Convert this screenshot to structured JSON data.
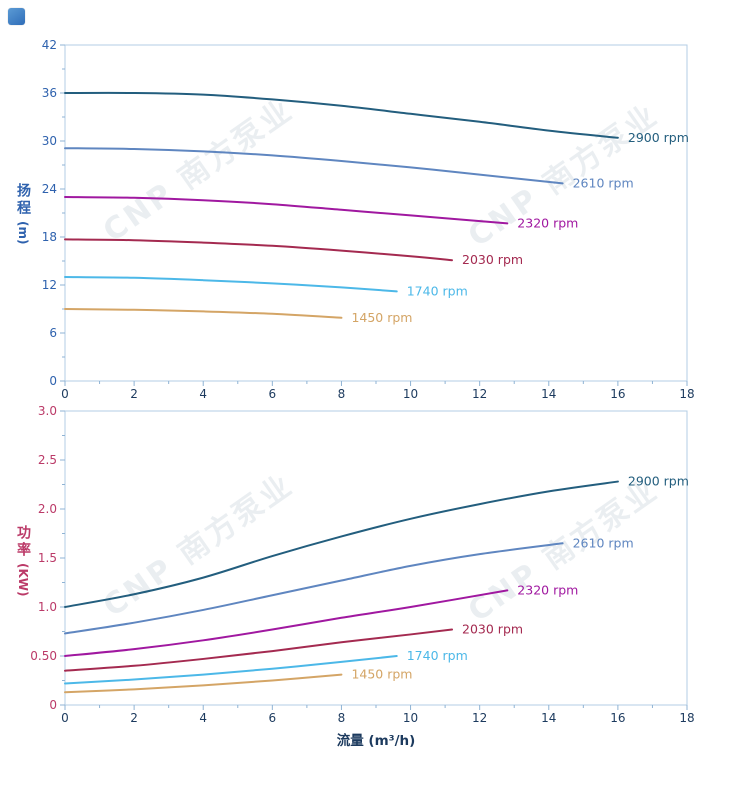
{
  "page": {
    "xaxis_title": "流量 (m³/h)",
    "watermark": "CNP 南方泵业"
  },
  "icons": {
    "corner_logo": "rounded-blue-square"
  },
  "axes": {
    "head": {
      "title": "扬程",
      "unit": "(m)"
    },
    "power": {
      "title": "功率",
      "unit": "(KW)"
    }
  },
  "theme": {
    "plot_border": "#b3cde4",
    "tick_color": "#8fb3d4",
    "xtick_label_color": "#1c3a5e"
  },
  "chart_data": [
    {
      "type": "line",
      "name": "head-vs-flow",
      "title": "",
      "xlabel": "流量 (m³/h)",
      "ylabel": "扬程 (m)",
      "xlim": [
        0,
        18
      ],
      "ylim": [
        0,
        42
      ],
      "xtick_values": [
        0,
        2,
        4,
        6,
        8,
        10,
        12,
        14,
        16,
        18
      ],
      "xtick_labels": [
        "0",
        "2",
        "4",
        "6",
        "8",
        "10",
        "12",
        "14",
        "16",
        "18"
      ],
      "ytick_values": [
        0,
        6,
        12,
        18,
        24,
        30,
        36,
        42
      ],
      "ytick_labels": [
        "0",
        "6",
        "12",
        "18",
        "24",
        "30",
        "36",
        "42"
      ],
      "ytick_label_color": "#2f62ae",
      "grid": false,
      "legend": "end-of-line labels",
      "series": [
        {
          "name": "2900 rpm",
          "color": "#235e7e",
          "x": [
            0,
            2,
            4,
            6,
            8,
            10,
            12,
            14,
            16
          ],
          "y": [
            36.0,
            36.0,
            35.8,
            35.2,
            34.4,
            33.4,
            32.4,
            31.3,
            30.4
          ]
        },
        {
          "name": "2610 rpm",
          "color": "#5f86c0",
          "x": [
            0,
            2,
            4,
            6,
            8,
            10,
            12,
            14.4
          ],
          "y": [
            29.1,
            29.0,
            28.7,
            28.2,
            27.5,
            26.7,
            25.8,
            24.7
          ]
        },
        {
          "name": "2320 rpm",
          "color": "#a018a0",
          "x": [
            0,
            2,
            4,
            6,
            8,
            10,
            12.8
          ],
          "y": [
            23.0,
            22.9,
            22.6,
            22.1,
            21.4,
            20.7,
            19.7
          ]
        },
        {
          "name": "2030 rpm",
          "color": "#a42a50",
          "x": [
            0,
            2,
            4,
            6,
            8,
            10,
            11.2
          ],
          "y": [
            17.7,
            17.6,
            17.3,
            16.9,
            16.3,
            15.6,
            15.1
          ]
        },
        {
          "name": "1740 rpm",
          "color": "#4cb8e8",
          "x": [
            0,
            2,
            4,
            6,
            8,
            9.6
          ],
          "y": [
            13.0,
            12.9,
            12.6,
            12.2,
            11.7,
            11.2
          ]
        },
        {
          "name": "1450 rpm",
          "color": "#d4a566",
          "x": [
            0,
            2,
            4,
            6,
            8
          ],
          "y": [
            9.0,
            8.9,
            8.7,
            8.4,
            7.9
          ]
        }
      ]
    },
    {
      "type": "line",
      "name": "power-vs-flow",
      "title": "",
      "xlabel": "流量 (m³/h)",
      "ylabel": "功率 (KW)",
      "xlim": [
        0,
        18
      ],
      "ylim": [
        0,
        3.0
      ],
      "xtick_values": [
        0,
        2,
        4,
        6,
        8,
        10,
        12,
        14,
        16,
        18
      ],
      "xtick_labels": [
        "0",
        "2",
        "4",
        "6",
        "8",
        "10",
        "12",
        "14",
        "16",
        "18"
      ],
      "ytick_values": [
        0,
        0.5,
        1.0,
        1.5,
        2.0,
        2.5,
        3.0
      ],
      "ytick_labels": [
        "0",
        "0.50",
        "1.0",
        "1.5",
        "2.0",
        "2.5",
        "3.0"
      ],
      "ytick_label_color": "#bb3a68",
      "grid": false,
      "legend": "end-of-line labels",
      "series": [
        {
          "name": "2900 rpm",
          "color": "#235e7e",
          "x": [
            0,
            2,
            4,
            6,
            8,
            10,
            12,
            14,
            16
          ],
          "y": [
            1.0,
            1.13,
            1.3,
            1.52,
            1.72,
            1.9,
            2.05,
            2.18,
            2.28
          ]
        },
        {
          "name": "2610 rpm",
          "color": "#5f86c0",
          "x": [
            0,
            2,
            4,
            6,
            8,
            10,
            12,
            14.4
          ],
          "y": [
            0.73,
            0.84,
            0.97,
            1.12,
            1.27,
            1.42,
            1.54,
            1.65
          ]
        },
        {
          "name": "2320 rpm",
          "color": "#a018a0",
          "x": [
            0,
            2,
            4,
            6,
            8,
            10,
            12.8
          ],
          "y": [
            0.5,
            0.57,
            0.66,
            0.77,
            0.89,
            1.0,
            1.17
          ]
        },
        {
          "name": "2030 rpm",
          "color": "#a42a50",
          "x": [
            0,
            2,
            4,
            6,
            8,
            10,
            11.2
          ],
          "y": [
            0.35,
            0.4,
            0.47,
            0.55,
            0.64,
            0.72,
            0.77
          ]
        },
        {
          "name": "1740 rpm",
          "color": "#4cb8e8",
          "x": [
            0,
            2,
            4,
            6,
            8,
            9.6
          ],
          "y": [
            0.22,
            0.26,
            0.31,
            0.37,
            0.44,
            0.5
          ]
        },
        {
          "name": "1450 rpm",
          "color": "#d4a566",
          "x": [
            0,
            2,
            4,
            6,
            8
          ],
          "y": [
            0.13,
            0.16,
            0.2,
            0.25,
            0.31
          ]
        }
      ]
    }
  ]
}
